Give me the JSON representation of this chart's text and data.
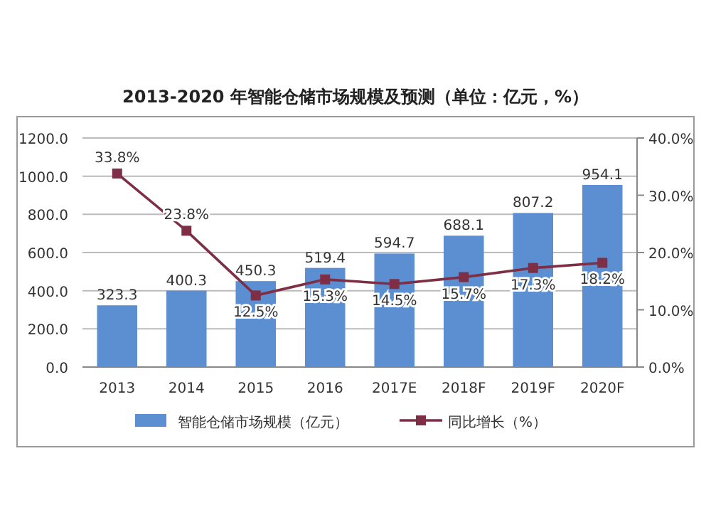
{
  "chart_data": {
    "type": "bar",
    "title": "2013-2020 年智能仓储市场规模及预测（单位：亿元，%）",
    "categories": [
      "2013",
      "2014",
      "2015",
      "2016",
      "2017E",
      "2018F",
      "2019F",
      "2020F"
    ],
    "series": [
      {
        "name": "智能仓储市场规模（亿元）",
        "color": "#5b8fd2",
        "values": [
          323.3,
          400.3,
          450.3,
          519.4,
          594.7,
          688.1,
          807.2,
          954.1
        ],
        "value_labels": [
          "323.3",
          "400.3",
          "450.3",
          "519.4",
          "594.7",
          "688.1",
          "807.2",
          "954.1"
        ]
      },
      {
        "name": "同比增长（%）",
        "type": "line",
        "axis": "y2",
        "color": "#7e2f45",
        "marker": "square",
        "values": [
          33.8,
          23.8,
          12.5,
          15.3,
          14.5,
          15.7,
          17.3,
          18.2
        ],
        "value_labels": [
          "33.8%",
          "23.8%",
          "12.5%",
          "15.3%",
          "14.5%",
          "15.7%",
          "17.3%",
          "18.2%"
        ]
      }
    ],
    "ylim": [
      0,
      1200
    ],
    "yticks": [
      {
        "value": 0,
        "label": "0.0"
      },
      {
        "value": 200,
        "label": "200.0"
      },
      {
        "value": 400,
        "label": "400.0"
      },
      {
        "value": 600,
        "label": "600.0"
      },
      {
        "value": 800,
        "label": "800.0"
      },
      {
        "value": 1000,
        "label": "1000.0"
      },
      {
        "value": 1200,
        "label": "1200.0"
      }
    ],
    "y2lim": [
      0,
      40
    ],
    "y2ticks": [
      {
        "value": 0,
        "label": "0.0%"
      },
      {
        "value": 10,
        "label": "10.0%"
      },
      {
        "value": 20,
        "label": "20.0%"
      },
      {
        "value": 30,
        "label": "30.0%"
      },
      {
        "value": 40,
        "label": "40.0%"
      }
    ],
    "grid": "y",
    "legend": "bottom"
  }
}
